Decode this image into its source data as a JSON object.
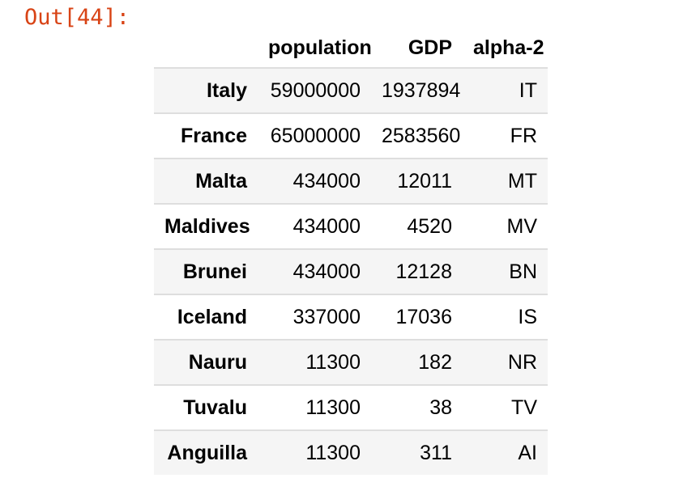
{
  "prompt": {
    "label": "Out[44]:"
  },
  "colors": {
    "prompt_text": "#d84315",
    "row_stripe": "#f5f5f5",
    "row_border": "#dedede",
    "table_text": "#000000"
  },
  "table": {
    "corner_label": "",
    "columns": [
      "population",
      "GDP",
      "alpha-2"
    ],
    "rows": [
      {
        "label": "Italy",
        "values": [
          "59000000",
          "1937894",
          "IT"
        ]
      },
      {
        "label": "France",
        "values": [
          "65000000",
          "2583560",
          "FR"
        ]
      },
      {
        "label": "Malta",
        "values": [
          "434000",
          "12011",
          "MT"
        ]
      },
      {
        "label": "Maldives",
        "values": [
          "434000",
          "4520",
          "MV"
        ]
      },
      {
        "label": "Brunei",
        "values": [
          "434000",
          "12128",
          "BN"
        ]
      },
      {
        "label": "Iceland",
        "values": [
          "337000",
          "17036",
          "IS"
        ]
      },
      {
        "label": "Nauru",
        "values": [
          "11300",
          "182",
          "NR"
        ]
      },
      {
        "label": "Tuvalu",
        "values": [
          "11300",
          "38",
          "TV"
        ]
      },
      {
        "label": "Anguilla",
        "values": [
          "11300",
          "311",
          "AI"
        ]
      }
    ]
  }
}
